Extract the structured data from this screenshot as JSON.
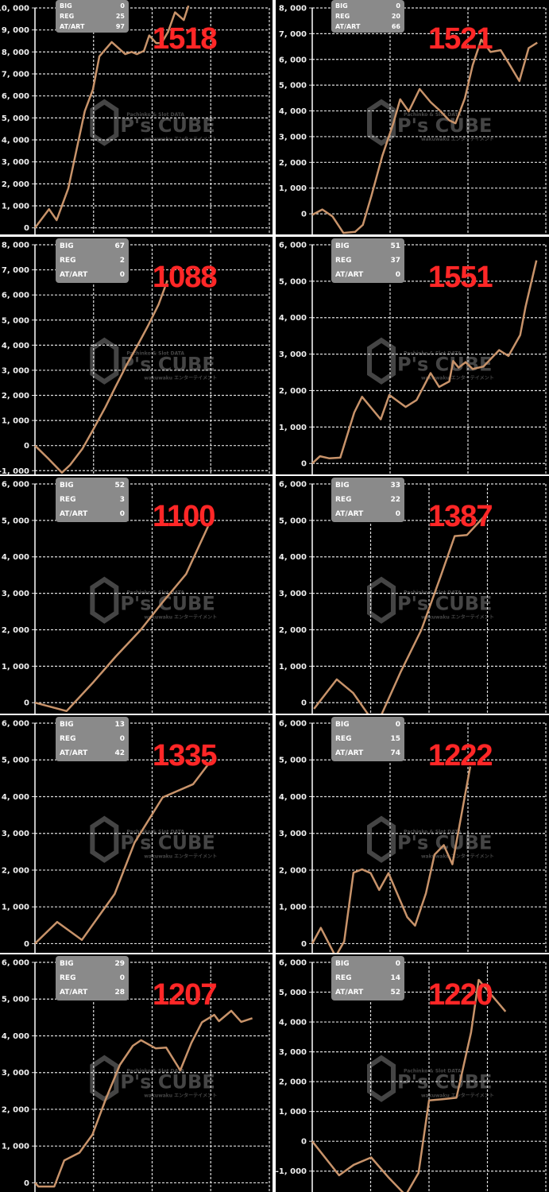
{
  "watermark": {
    "top": "Pachinko & Slot DATA",
    "main": "P's CUBE",
    "sub": "wakuwaku エンターテイメント"
  },
  "colors": {
    "line": "#c8936a",
    "grid": "#dddddd",
    "background": "#000000",
    "annotation": "#ff2727",
    "stats_box": "#8a8a8a"
  },
  "chart_data": [
    {
      "type": "line",
      "annotation": "1518",
      "stats": {
        "BIG": "0",
        "REG": "25",
        "AT/ART": "97"
      },
      "ylim": [
        -300,
        10000
      ],
      "ytick_step": 1000,
      "xlim": [
        0,
        4
      ],
      "grid": true,
      "x": [
        0,
        0.24,
        0.37,
        0.57,
        0.85,
        0.99,
        1.1,
        1.31,
        1.54,
        1.65,
        1.74,
        1.86,
        1.95,
        2.07,
        2.16,
        2.27,
        2.39,
        2.54,
        2.62
      ],
      "y": [
        0,
        850,
        350,
        1800,
        5300,
        6300,
        7800,
        8450,
        7900,
        8000,
        7900,
        8050,
        8750,
        8400,
        8400,
        8900,
        9800,
        9450,
        10100
      ]
    },
    {
      "type": "line",
      "annotation": "1521",
      "stats": {
        "BIG": "0",
        "REG": "20",
        "AT/ART": "66"
      },
      "ylim": [
        -800,
        8000
      ],
      "ytick_step": 1000,
      "xlim": [
        0,
        3
      ],
      "grid": true,
      "x": [
        0,
        0.13,
        0.26,
        0.4,
        0.55,
        0.65,
        0.76,
        0.9,
        1.04,
        1.13,
        1.24,
        1.38,
        1.52,
        1.65,
        1.76,
        1.84,
        1.96,
        2.06,
        2.17,
        2.29,
        2.42,
        2.54,
        2.66,
        2.78,
        2.89
      ],
      "y": [
        -40,
        170,
        -100,
        -740,
        -700,
        -430,
        700,
        2250,
        3500,
        4450,
        3980,
        4850,
        4340,
        3980,
        3630,
        3520,
        4490,
        5770,
        6770,
        6290,
        6360,
        5770,
        5160,
        6440,
        6650
      ]
    },
    {
      "type": "line",
      "annotation": "1088",
      "stats": {
        "BIG": "67",
        "REG": "2",
        "AT/ART": "0"
      },
      "ylim": [
        -1150,
        8000
      ],
      "ytick_step": 1000,
      "xlim": [
        0,
        4
      ],
      "grid": true,
      "x": [
        0,
        0.22,
        0.46,
        0.6,
        0.81,
        0.99,
        1.2,
        1.37,
        1.58,
        1.76,
        1.93,
        2.11,
        2.26
      ],
      "y": [
        0,
        -500,
        -1080,
        -770,
        -130,
        620,
        1520,
        2320,
        3280,
        4030,
        4770,
        5620,
        6580
      ]
    },
    {
      "type": "line",
      "annotation": "1551",
      "stats": {
        "BIG": "51",
        "REG": "37",
        "AT/ART": "0"
      },
      "ylim": [
        -300,
        6000
      ],
      "ytick_step": 1000,
      "xlim": [
        0,
        3
      ],
      "grid": true,
      "x": [
        0,
        0.1,
        0.22,
        0.36,
        0.54,
        0.64,
        0.88,
        0.99,
        1.2,
        1.34,
        1.52,
        1.63,
        1.76,
        1.81,
        1.88,
        1.97,
        2.06,
        2.2,
        2.4,
        2.52,
        2.67,
        2.74,
        2.88
      ],
      "y": [
        0,
        200,
        140,
        160,
        1400,
        1830,
        1210,
        1880,
        1550,
        1740,
        2480,
        2100,
        2250,
        2810,
        2630,
        2780,
        2590,
        2660,
        3110,
        2950,
        3520,
        4300,
        5570
      ]
    },
    {
      "type": "line",
      "annotation": "1100",
      "stats": {
        "BIG": "52",
        "REG": "3",
        "AT/ART": "0"
      },
      "ylim": [
        -300,
        6000
      ],
      "ytick_step": 1000,
      "xlim": [
        0,
        2
      ],
      "grid": true,
      "x": [
        0,
        0.27,
        0.5,
        0.69,
        0.9,
        1.08,
        1.29,
        1.5
      ],
      "y": [
        0,
        -230,
        570,
        1270,
        1990,
        2720,
        3530,
        5000
      ]
    },
    {
      "type": "line",
      "annotation": "1387",
      "stats": {
        "BIG": "33",
        "REG": "22",
        "AT/ART": "0"
      },
      "ylim": [
        -300,
        6000
      ],
      "ytick_step": 1000,
      "xlim": [
        0,
        4
      ],
      "grid": true,
      "x": [
        0.03,
        0.42,
        0.7,
        0.97,
        1.18,
        1.51,
        1.87,
        2.2,
        2.44,
        2.65,
        2.98
      ],
      "y": [
        -170,
        640,
        270,
        -350,
        -350,
        830,
        2000,
        3470,
        4570,
        4600,
        5170
      ]
    },
    {
      "type": "line",
      "annotation": "1335",
      "stats": {
        "BIG": "13",
        "REG": "0",
        "AT/ART": "42"
      },
      "ylim": [
        -250,
        6000
      ],
      "ytick_step": 1000,
      "xlim": [
        0,
        2
      ],
      "grid": true,
      "x": [
        0,
        0.19,
        0.4,
        0.68,
        0.85,
        1.09,
        1.35,
        1.5
      ],
      "y": [
        0,
        590,
        100,
        1350,
        2750,
        3980,
        4340,
        4970
      ]
    },
    {
      "type": "line",
      "annotation": "1222",
      "stats": {
        "BIG": "0",
        "REG": "15",
        "AT/ART": "74"
      },
      "ylim": [
        -250,
        6000
      ],
      "ytick_step": 1000,
      "xlim": [
        0,
        3
      ],
      "grid": true,
      "x": [
        0,
        0.11,
        0.3,
        0.41,
        0.53,
        0.64,
        0.75,
        0.86,
        0.98,
        1.22,
        1.32,
        1.46,
        1.57,
        1.69,
        1.8,
        2.03
      ],
      "y": [
        0,
        430,
        -350,
        60,
        1930,
        2020,
        1920,
        1460,
        1920,
        720,
        490,
        1370,
        2420,
        2680,
        2160,
        4820
      ]
    },
    {
      "type": "line",
      "annotation": "1207",
      "stats": {
        "BIG": "29",
        "REG": "0",
        "AT/ART": "28"
      },
      "ylim": [
        -250,
        6000
      ],
      "ytick_step": 1000,
      "xlim": [
        0,
        4
      ],
      "grid": true,
      "x": [
        0,
        0.06,
        0.33,
        0.5,
        0.76,
        0.98,
        1.21,
        1.45,
        1.67,
        1.81,
        2.06,
        2.24,
        2.48,
        2.67,
        2.85,
        3.06,
        3.14,
        3.35,
        3.52,
        3.71
      ],
      "y": [
        0,
        -100,
        -100,
        610,
        820,
        1310,
        2280,
        3210,
        3730,
        3880,
        3660,
        3680,
        3060,
        3810,
        4370,
        4570,
        4400,
        4680,
        4380,
        4480
      ]
    },
    {
      "type": "line",
      "annotation": "1220",
      "stats": {
        "BIG": "0",
        "REG": "14",
        "AT/ART": "52"
      },
      "ylim": [
        -1700,
        6000
      ],
      "ytick_step": 1000,
      "xlim": [
        0,
        4
      ],
      "grid": true,
      "x": [
        0,
        0.46,
        0.71,
        1.01,
        1.3,
        1.6,
        1.82,
        2.0,
        2.23,
        2.47,
        2.72,
        2.85,
        3.31
      ],
      "y": [
        0,
        -1140,
        -790,
        -540,
        -1200,
        -1810,
        -1060,
        1370,
        1410,
        1460,
        3650,
        5410,
        4350
      ]
    }
  ]
}
